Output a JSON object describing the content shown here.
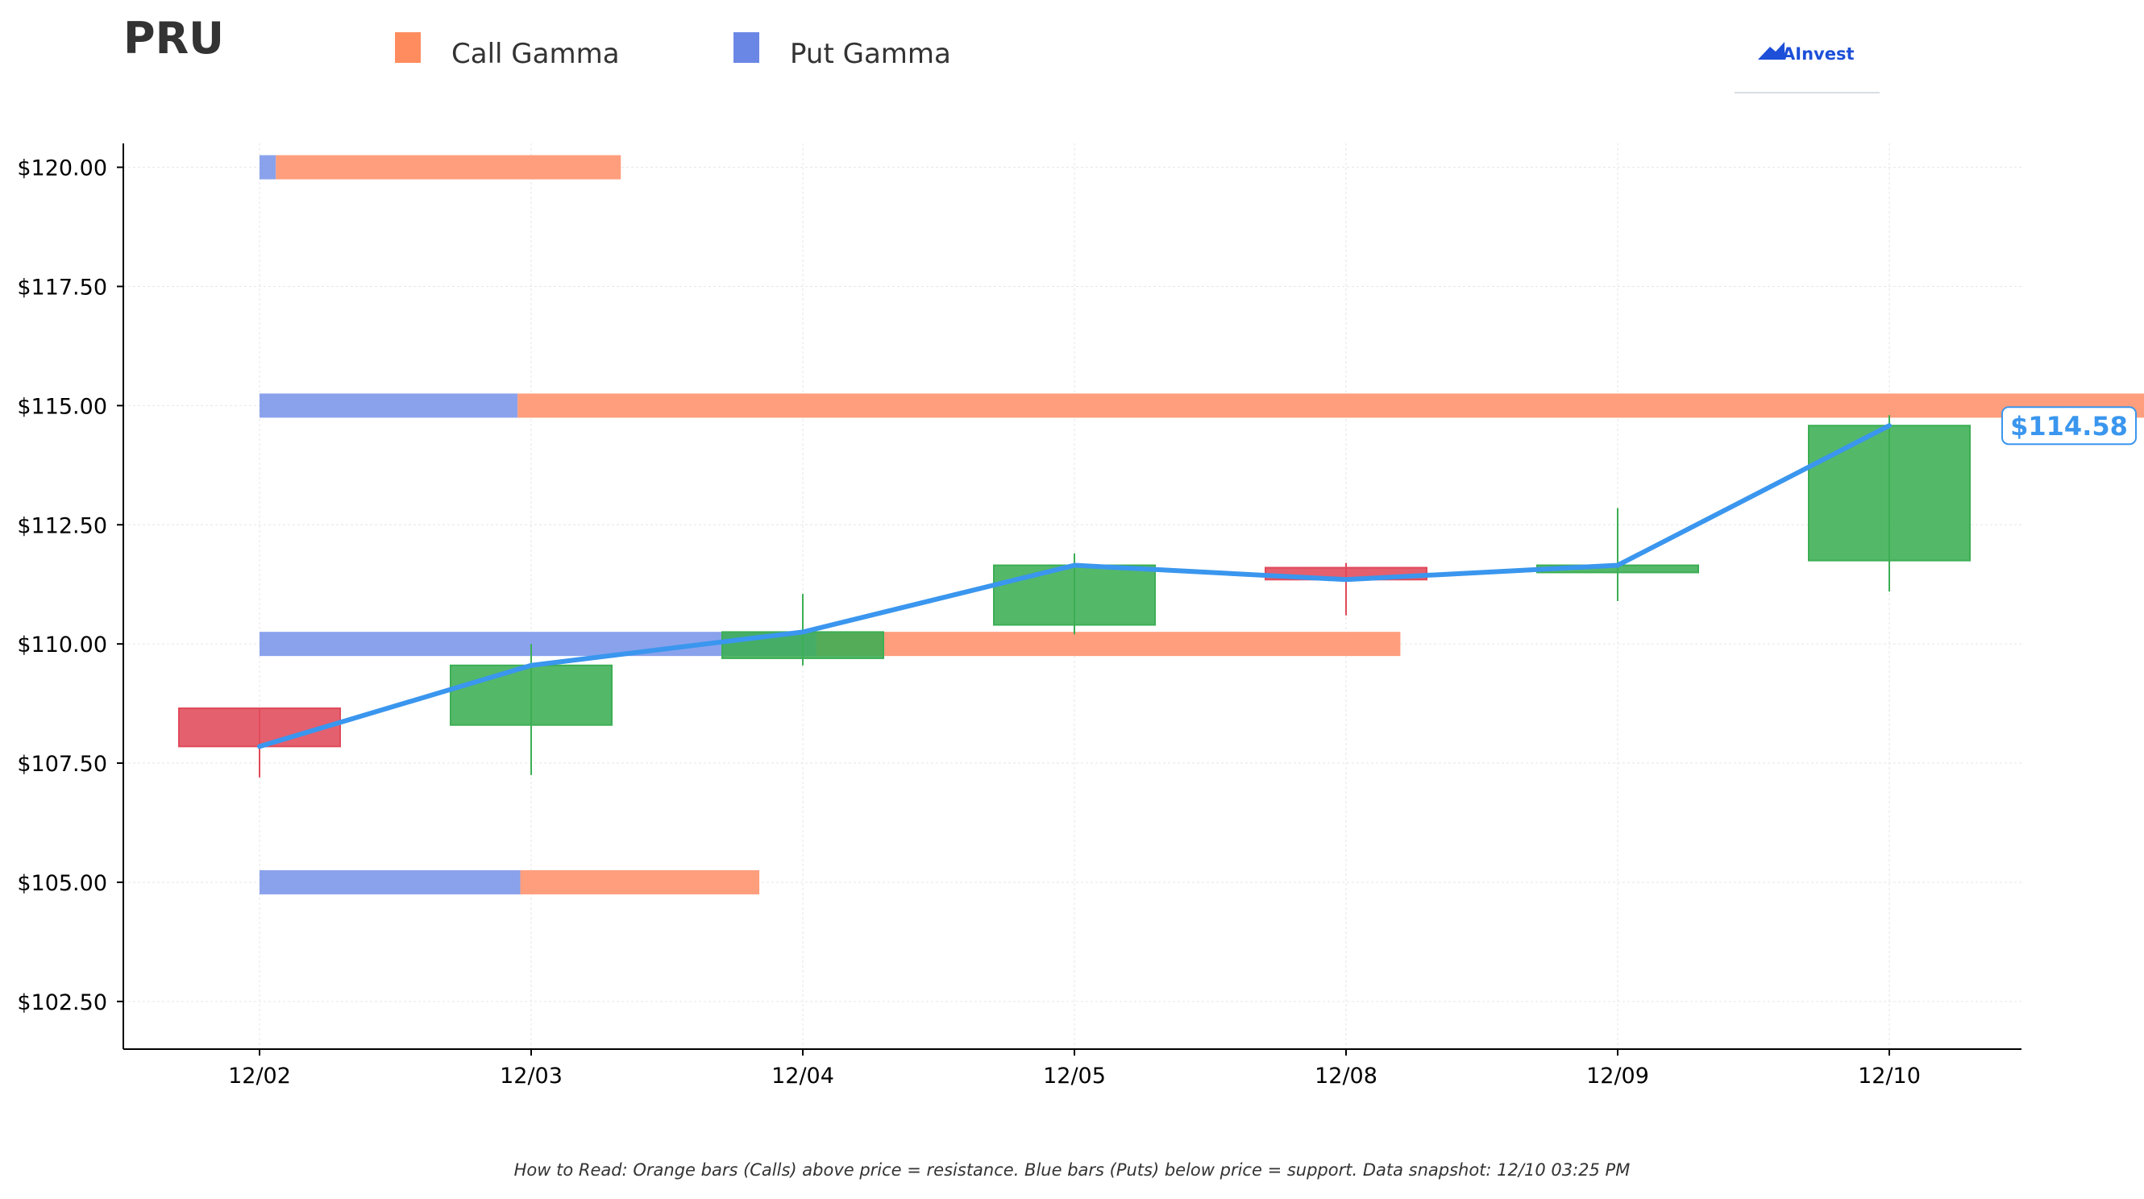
{
  "chart_data": {
    "type": "candlestick",
    "title": "PRU",
    "legend": {
      "placement": "top-left",
      "items": [
        {
          "name": "Call Gamma",
          "color": "#ff8c69"
        },
        {
          "name": "Put Gamma",
          "color": "#6d8be8"
        }
      ]
    },
    "logo_text": "AInvest",
    "categories": [
      "12/02",
      "12/03",
      "12/04",
      "12/05",
      "12/08",
      "12/09",
      "12/10"
    ],
    "ylim": [
      101.5,
      120.5
    ],
    "yticks": [
      102.5,
      105.0,
      107.5,
      110.0,
      112.5,
      115.0,
      117.5,
      120.0
    ],
    "ytick_labels": [
      "$102.50",
      "$105.00",
      "$107.50",
      "$110.00",
      "$112.50",
      "$115.00",
      "$117.50",
      "$120.00"
    ],
    "grid": true,
    "candles": [
      {
        "date": "12/02",
        "open": 108.65,
        "high": 108.65,
        "low": 107.2,
        "close": 107.85
      },
      {
        "date": "12/03",
        "open": 108.3,
        "high": 110.0,
        "low": 107.25,
        "close": 109.55
      },
      {
        "date": "12/04",
        "open": 109.7,
        "high": 111.05,
        "low": 109.55,
        "close": 110.25
      },
      {
        "date": "12/05",
        "open": 110.4,
        "high": 111.9,
        "low": 110.2,
        "close": 111.65
      },
      {
        "date": "12/08",
        "open": 111.6,
        "high": 111.7,
        "low": 110.6,
        "close": 111.35
      },
      {
        "date": "12/09",
        "open": 111.5,
        "high": 112.85,
        "low": 110.9,
        "close": 111.65
      },
      {
        "date": "12/10",
        "open": 111.75,
        "high": 114.8,
        "low": 111.1,
        "close": 114.58
      }
    ],
    "price_line": {
      "color": "#3a96ee",
      "values": [
        107.85,
        109.55,
        110.25,
        111.65,
        111.35,
        111.65,
        114.58
      ]
    },
    "last_price_label": "$114.58",
    "gamma_levels": [
      {
        "strike": 120.0,
        "put_gamma": 0.06,
        "call_gamma": 1.27
      },
      {
        "strike": 115.0,
        "put_gamma": 0.95,
        "call_gamma": 6.03
      },
      {
        "strike": 110.0,
        "put_gamma": 2.05,
        "call_gamma": 2.15
      },
      {
        "strike": 105.0,
        "put_gamma": 0.96,
        "call_gamma": 0.88
      }
    ],
    "gamma_units_note": "bar lengths in date-axis units (1.0 = one trading day)",
    "colors": {
      "up": "#3cae54",
      "down": "#e04a5a",
      "call": "#ff9e7d",
      "put": "#8aa2ec"
    },
    "footnote": "How to Read: Orange bars (Calls) above price = resistance. Blue bars (Puts) below price = support. Data snapshot: 12/10 03:25 PM"
  }
}
